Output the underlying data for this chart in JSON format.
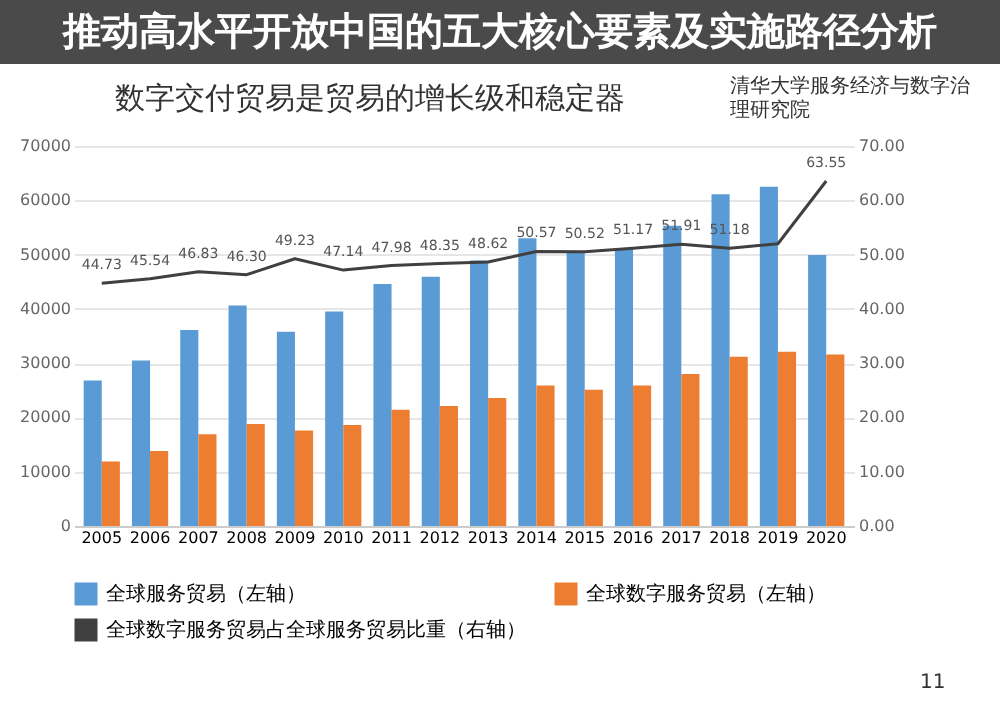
{
  "chart_data": {
    "type": "bar",
    "title": "数字交付贸易是贸易的增长级和稳定器",
    "annotations": [
      "推动高水平开放中国的五大核心要素及实施路径分析",
      "清华大学服务经济与数字治理研究院",
      "11"
    ],
    "categories": [
      "2005",
      "2006",
      "2007",
      "2008",
      "2009",
      "2010",
      "2011",
      "2012",
      "2013",
      "2014",
      "2015",
      "2016",
      "2017",
      "2018",
      "2019",
      "2020"
    ],
    "series": [
      {
        "name": "全球服务贸易（左轴）",
        "color": "#5b9bd5",
        "axis": "y",
        "values": [
          26800,
          30500,
          36100,
          40600,
          35800,
          39500,
          44600,
          45900,
          48900,
          53000,
          50300,
          51100,
          55300,
          61100,
          62500,
          49900
        ]
      },
      {
        "name": "全球数字服务贸易（左轴）",
        "color": "#ed7d31",
        "axis": "y",
        "values": [
          11900,
          13800,
          16900,
          18800,
          17600,
          18600,
          21400,
          22100,
          23600,
          25900,
          25100,
          25900,
          28000,
          31200,
          32100,
          31600
        ]
      },
      {
        "name": "全球数字服务贸易占全球服务贸易比重（右轴）",
        "type": "line",
        "color": "#404040",
        "axis": "y2",
        "values": [
          44.73,
          45.54,
          46.83,
          46.3,
          49.23,
          47.14,
          47.98,
          48.35,
          48.62,
          50.57,
          50.52,
          51.17,
          51.91,
          51.18,
          52,
          63.55
        ],
        "value_labels": [
          "44.73",
          "45.54",
          "46.83",
          "46.30",
          "49.23",
          "47.14",
          "47.98",
          "48.35",
          "48.62",
          "50.57",
          "50.52",
          "51.17",
          "51.91",
          "51.18",
          null,
          "63.55"
        ]
      }
    ],
    "ylim": [
      0,
      70000
    ],
    "yticks": [
      0,
      10000,
      20000,
      30000,
      40000,
      50000,
      60000,
      70000
    ],
    "y2lim": [
      0,
      70
    ],
    "y2ticks": [
      {
        "value": 0,
        "label": "0.00"
      },
      {
        "value": 10,
        "label": "10.00"
      },
      {
        "value": 20,
        "label": "20.00"
      },
      {
        "value": 30,
        "label": "30.00"
      },
      {
        "value": 40,
        "label": "40.00"
      },
      {
        "value": 50,
        "label": "50.00"
      },
      {
        "value": 60,
        "label": "60.00"
      },
      {
        "value": 70,
        "label": "70.00"
      }
    ],
    "grid": "y",
    "legend": "bottom"
  }
}
